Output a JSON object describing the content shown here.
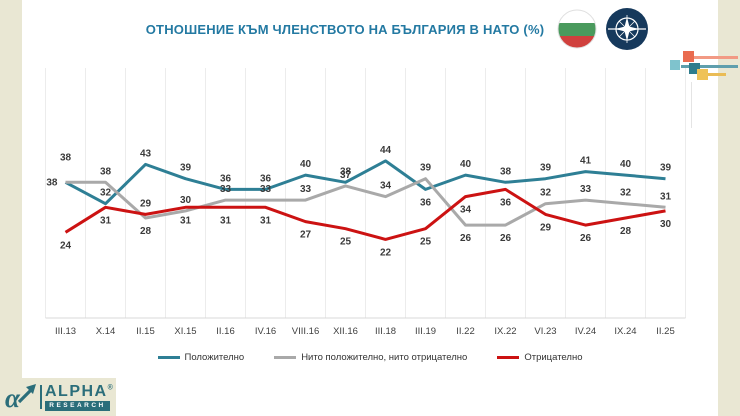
{
  "title": "ОТНОШЕНИЕ КЪМ ЧЛЕНСТВОТО НА БЪЛГАРИЯ В НАТО (%)",
  "header_icons": {
    "flag": "bulgaria-flag-icon",
    "nato": "nato-emblem-icon"
  },
  "chart_data": {
    "type": "line",
    "categories": [
      "III.13",
      "X.14",
      "II.15",
      "XI.15",
      "II.16",
      "IV.16",
      "VIII.16",
      "XII.16",
      "III.18",
      "III.19",
      "II.22",
      "IX.22",
      "VI.23",
      "IV.24",
      "IX.24",
      "II.25"
    ],
    "series": [
      {
        "name": "Положително",
        "color": "#2E7F95",
        "values": [
          38,
          32,
          43,
          39,
          36,
          36,
          40,
          38,
          44,
          36,
          40,
          38,
          39,
          41,
          40,
          39
        ]
      },
      {
        "name": "Нито положително, нито отрицателно",
        "color": "#A9A9A9",
        "values": [
          38,
          38,
          28,
          30,
          33,
          33,
          33,
          37,
          34,
          39,
          26,
          26,
          32,
          33,
          32,
          31
        ]
      },
      {
        "name": "Отрицателно",
        "color": "#CC1212",
        "values": [
          24,
          31,
          29,
          31,
          31,
          31,
          27,
          25,
          22,
          25,
          34,
          36,
          29,
          26,
          28,
          30
        ]
      }
    ],
    "ylim": [
      0,
      70
    ],
    "grid": "vertical-category-lines",
    "legend_position": "bottom",
    "data_labels": true,
    "label_placement": [
      {
        "default": "above",
        "overrides": {
          "0": "above-high",
          "9": "below"
        }
      },
      {
        "default": "above",
        "overrides": {
          "0": "left",
          "2": "below",
          "10": "below",
          "11": "below"
        }
      },
      {
        "default": "below",
        "overrides": {
          "2": "above"
        }
      }
    ]
  },
  "footer_logo": {
    "brand": "ALPHA",
    "registered": "®",
    "sub": "RESEARCH"
  },
  "colors": {
    "title": "#2379A2",
    "side_strip": "#E9E7D3",
    "nato_navy": "#16395C",
    "flag_green": "#4A9A5D",
    "flag_red": "#D0403D",
    "accent_orange": "#E96B4F",
    "accent_lightblue": "#7FC3CD",
    "accent_darkteal": "#2E7C8C",
    "accent_yellow": "#EFC257",
    "line_salmon": "#F29A84",
    "line_teal": "#5F9FAD",
    "line_yellow": "#EABC55",
    "gridline": "#ECECEC",
    "axis_line": "#D9D9D9",
    "data_label": "#3A3A3A",
    "logo_teal": "#2B6E7A"
  }
}
